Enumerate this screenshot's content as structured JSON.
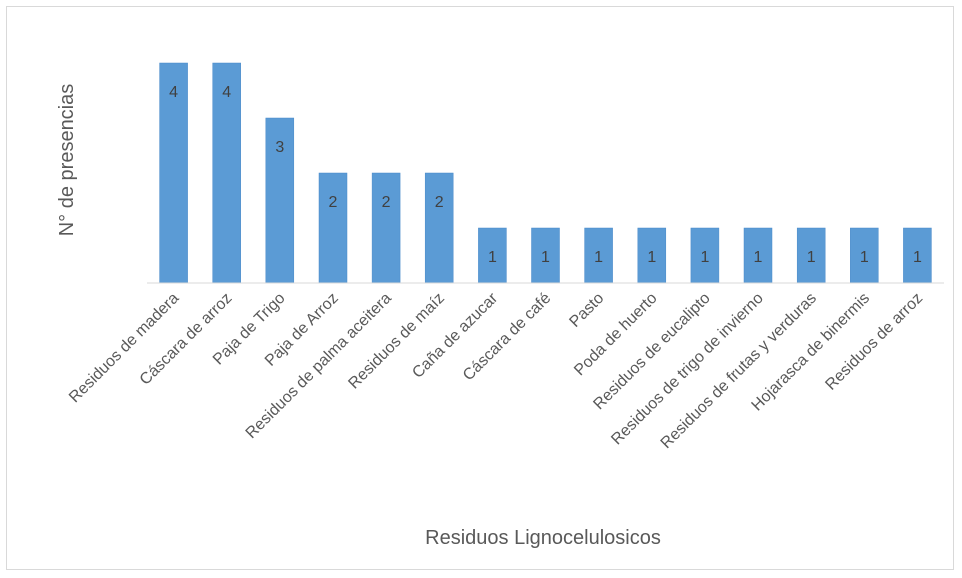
{
  "chart_data": {
    "type": "bar",
    "categories": [
      "Residuos de madera",
      "Cáscara de arroz",
      "Paja de Trigo",
      "Paja de Arroz",
      "Residuos de palma aceitera",
      "Residuos de maíz",
      "Caña de azucar",
      "Cáscara de café",
      "Pasto",
      "Poda de huerto",
      "Residuos de eucalipto",
      "Residuos de trigo de invierno",
      "Residuos de frutas y verduras",
      "Hojarasca de binermis",
      "Residuos de arroz"
    ],
    "values": [
      4,
      4,
      3,
      2,
      2,
      2,
      1,
      1,
      1,
      1,
      1,
      1,
      1,
      1,
      1
    ],
    "xlabel": "Residuos Lignocelulosicos",
    "ylabel": "N° de presencias",
    "ylim": [
      0,
      4
    ],
    "grid": false,
    "legend": "none",
    "data_labels": true,
    "colors": {
      "bar_fill": "#5b9bd5",
      "bar_edge": "#4a8ac9",
      "axis": "#d9d9d9",
      "text": "#595959",
      "label": "#404040"
    }
  }
}
